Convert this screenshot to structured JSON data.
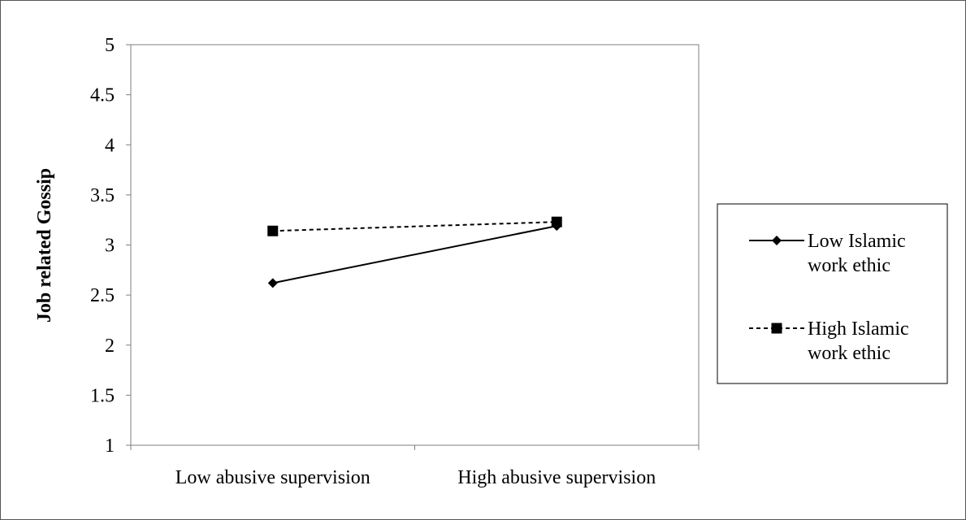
{
  "chart_data": {
    "type": "line",
    "ylabel": "Job related Gossip",
    "xlabel": "",
    "ylim": [
      1,
      5
    ],
    "yticks": [
      "1",
      "1.5",
      "2",
      "2.5",
      "3",
      "3.5",
      "4",
      "4.5",
      "5"
    ],
    "categories": [
      "Low abusive supervision",
      "High abusive supervision"
    ],
    "series": [
      {
        "name": "Low Islamic work ethic",
        "name_lines": [
          "Low Islamic",
          "work ethic"
        ],
        "values": [
          2.62,
          3.19
        ],
        "marker": "diamond",
        "line_style": "solid",
        "color": "#000000"
      },
      {
        "name": "High Islamic work ethic",
        "name_lines": [
          "High Islamic",
          "work ethic"
        ],
        "values": [
          3.14,
          3.23
        ],
        "marker": "square",
        "line_style": "dashed",
        "color": "#000000"
      }
    ],
    "grid": false,
    "legend_position": "right"
  }
}
